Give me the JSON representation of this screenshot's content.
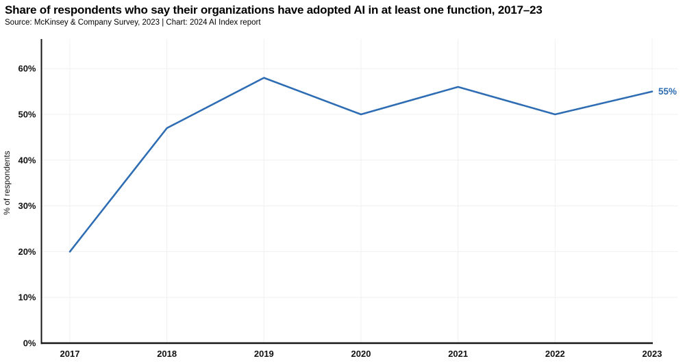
{
  "header": {
    "title": "Share of respondents who say their organizations have adopted AI in at least one function, 2017–23",
    "subtitle": "Source: McKinsey & Company Survey, 2023 | Chart: 2024 AI Index report"
  },
  "chart_data": {
    "type": "line",
    "title": "Share of respondents who say their organizations have adopted AI in at least one function, 2017–23",
    "subtitle": "Source: McKinsey & Company Survey, 2023 | Chart: 2024 AI Index report",
    "categories": [
      "2017",
      "2018",
      "2019",
      "2020",
      "2021",
      "2022",
      "2023"
    ],
    "series": [
      {
        "name": "% of respondents",
        "values": [
          20,
          47,
          58,
          50,
          56,
          50,
          55
        ],
        "color": "#2e6db4"
      }
    ],
    "end_label": "55%",
    "end_label_color": "#2e6db4",
    "xlabel": "",
    "ylabel": "% of respondents",
    "ylim": [
      0,
      66
    ],
    "yticks": [
      0,
      10,
      20,
      30,
      40,
      50,
      60
    ],
    "ytick_labels": [
      "0%",
      "10%",
      "20%",
      "30%",
      "40%",
      "50%",
      "60%"
    ],
    "grid": "both",
    "grid_color": "#f0f0f2",
    "axis_color": "#161616",
    "tick_label_color": "#111111",
    "legend_position": "none",
    "markers": "none"
  }
}
